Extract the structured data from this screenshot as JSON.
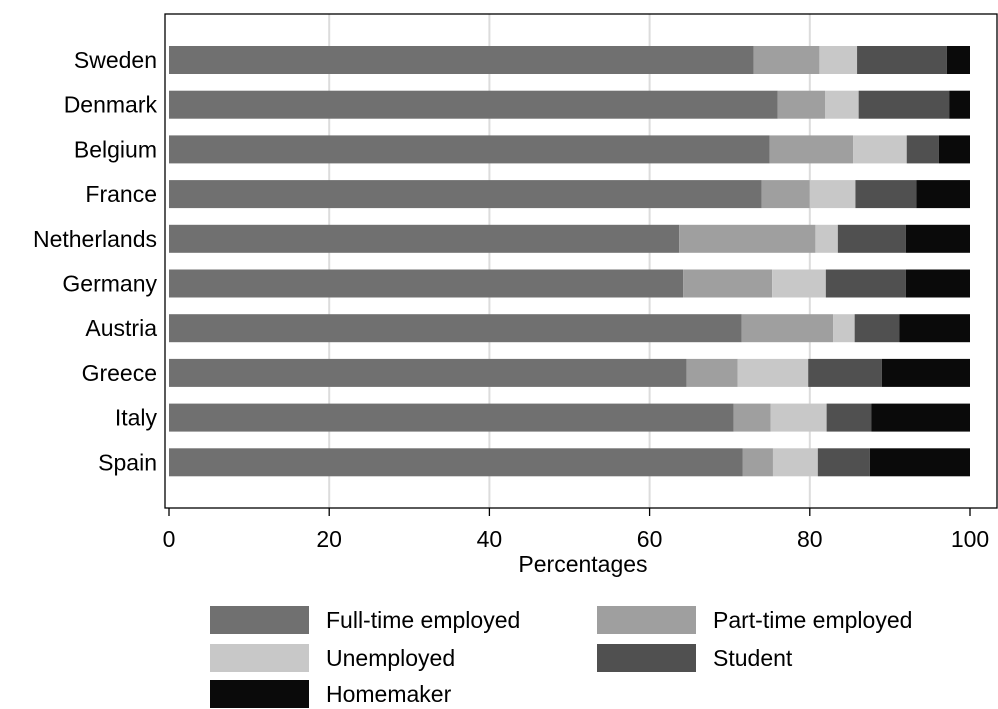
{
  "chart_data": {
    "type": "bar",
    "orientation": "horizontal",
    "stacked": true,
    "title": "",
    "xlabel": "Percentages",
    "ylabel": "",
    "xlim": [
      0,
      100
    ],
    "xticks": [
      "0",
      "20",
      "40",
      "60",
      "80",
      "100"
    ],
    "grid": true,
    "legend_position": "bottom",
    "categories": [
      "Sweden",
      "Denmark",
      "Belgium",
      "France",
      "Netherlands",
      "Germany",
      "Austria",
      "Greece",
      "Italy",
      "Spain"
    ],
    "series": [
      {
        "name": "Full-time employed",
        "color": "#707070",
        "values": [
          73.0,
          76.0,
          75.0,
          74.0,
          63.7,
          64.2,
          71.5,
          64.6,
          70.5,
          71.6
        ]
      },
      {
        "name": "Part-time employed",
        "color": "#9f9f9f",
        "values": [
          8.2,
          5.9,
          10.4,
          6.0,
          17.0,
          11.1,
          11.4,
          6.4,
          4.6,
          3.8
        ]
      },
      {
        "name": "Unemployed",
        "color": "#c8c8c8",
        "values": [
          4.7,
          4.2,
          6.7,
          5.7,
          2.8,
          6.7,
          2.7,
          8.8,
          7.0,
          5.6
        ]
      },
      {
        "name": "Student",
        "color": "#505050",
        "values": [
          11.2,
          11.3,
          4.0,
          7.6,
          8.5,
          10.0,
          5.6,
          9.2,
          5.6,
          6.5
        ]
      },
      {
        "name": "Homemaker",
        "color": "#0a0a0a",
        "values": [
          2.9,
          2.6,
          3.9,
          6.7,
          8.0,
          8.0,
          8.8,
          11.0,
          12.3,
          12.5
        ]
      }
    ]
  }
}
